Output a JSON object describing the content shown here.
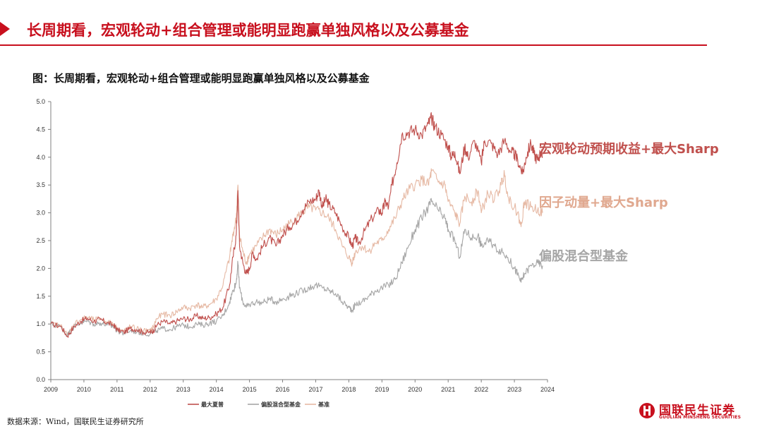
{
  "header": {
    "title": "长周期看，宏观轮动+组合管理或能明显跑赢单独风格以及公募基金"
  },
  "figure": {
    "caption": "图：长周期看，宏观轮动+组合管理或能明显跑赢单独风格以及公募基金"
  },
  "source": "数据来源：Wind，国联民生证券研究所",
  "logo": {
    "name": "国联民生证券",
    "english": "GUOLIAN MINSHENG SECURITIES"
  },
  "chart_data": {
    "type": "line",
    "x_ticks": [
      "2009",
      "2010",
      "2011",
      "2012",
      "2013",
      "2014",
      "2015",
      "2016",
      "2017",
      "2018",
      "2019",
      "2020",
      "2021",
      "2022",
      "2023",
      "2024"
    ],
    "y_ticks": [
      "0.0",
      "0.5",
      "1.0",
      "1.5",
      "2.0",
      "2.5",
      "3.0",
      "3.5",
      "4.0",
      "4.5",
      "5.0"
    ],
    "xlim": [
      2009,
      2024
    ],
    "ylim": [
      0,
      5
    ],
    "grid": false,
    "legend_position": "bottom",
    "series": [
      {
        "name": "最大夏普",
        "label": "宏观轮动预期收益+最大Sharp",
        "color": "#c0504d",
        "points": [
          [
            2009.0,
            1.0
          ],
          [
            2009.3,
            0.96
          ],
          [
            2009.5,
            0.78
          ],
          [
            2009.7,
            0.95
          ],
          [
            2009.9,
            1.05
          ],
          [
            2010.1,
            1.1
          ],
          [
            2010.3,
            1.05
          ],
          [
            2010.5,
            1.08
          ],
          [
            2010.7,
            1.02
          ],
          [
            2010.9,
            0.98
          ],
          [
            2011.0,
            0.9
          ],
          [
            2011.2,
            0.85
          ],
          [
            2011.4,
            0.92
          ],
          [
            2011.6,
            0.9
          ],
          [
            2011.8,
            0.85
          ],
          [
            2012.0,
            0.85
          ],
          [
            2012.1,
            0.88
          ],
          [
            2012.2,
            0.98
          ],
          [
            2012.4,
            1.05
          ],
          [
            2012.6,
            1.0
          ],
          [
            2012.8,
            1.05
          ],
          [
            2013.0,
            1.1
          ],
          [
            2013.2,
            1.08
          ],
          [
            2013.4,
            1.15
          ],
          [
            2013.6,
            1.1
          ],
          [
            2013.8,
            1.12
          ],
          [
            2014.0,
            1.18
          ],
          [
            2014.2,
            1.3
          ],
          [
            2014.4,
            1.7
          ],
          [
            2014.5,
            2.2
          ],
          [
            2014.6,
            2.6
          ],
          [
            2014.65,
            3.4
          ],
          [
            2014.7,
            2.4
          ],
          [
            2014.8,
            2.1
          ],
          [
            2014.9,
            1.9
          ],
          [
            2015.0,
            2.0
          ],
          [
            2015.1,
            2.3
          ],
          [
            2015.2,
            2.15
          ],
          [
            2015.4,
            2.4
          ],
          [
            2015.6,
            2.55
          ],
          [
            2015.8,
            2.4
          ],
          [
            2016.0,
            2.6
          ],
          [
            2016.2,
            2.75
          ],
          [
            2016.4,
            2.85
          ],
          [
            2016.6,
            3.05
          ],
          [
            2016.8,
            3.2
          ],
          [
            2017.0,
            3.25
          ],
          [
            2017.1,
            3.4
          ],
          [
            2017.2,
            3.1
          ],
          [
            2017.3,
            3.25
          ],
          [
            2017.4,
            3.15
          ],
          [
            2017.6,
            3.0
          ],
          [
            2017.8,
            2.75
          ],
          [
            2018.0,
            2.55
          ],
          [
            2018.1,
            2.4
          ],
          [
            2018.2,
            2.55
          ],
          [
            2018.3,
            2.45
          ],
          [
            2018.5,
            2.7
          ],
          [
            2018.7,
            2.9
          ],
          [
            2018.9,
            3.05
          ],
          [
            2019.0,
            3.0
          ],
          [
            2019.1,
            3.2
          ],
          [
            2019.2,
            3.1
          ],
          [
            2019.3,
            3.5
          ],
          [
            2019.45,
            3.9
          ],
          [
            2019.6,
            4.4
          ],
          [
            2019.8,
            4.45
          ],
          [
            2020.0,
            4.5
          ],
          [
            2020.2,
            4.4
          ],
          [
            2020.4,
            4.6
          ],
          [
            2020.5,
            4.7
          ],
          [
            2020.6,
            4.55
          ],
          [
            2020.8,
            4.4
          ],
          [
            2021.0,
            4.2
          ],
          [
            2021.1,
            4.0
          ],
          [
            2021.2,
            4.1
          ],
          [
            2021.35,
            3.7
          ],
          [
            2021.5,
            4.2
          ],
          [
            2021.6,
            4.0
          ],
          [
            2021.8,
            4.3
          ],
          [
            2022.0,
            3.9
          ],
          [
            2022.1,
            4.3
          ],
          [
            2022.3,
            4.25
          ],
          [
            2022.5,
            4.05
          ],
          [
            2022.7,
            4.3
          ],
          [
            2022.9,
            4.1
          ],
          [
            2023.0,
            4.05
          ],
          [
            2023.1,
            3.95
          ],
          [
            2023.25,
            3.7
          ],
          [
            2023.35,
            4.0
          ],
          [
            2023.5,
            4.25
          ],
          [
            2023.6,
            4.05
          ],
          [
            2023.7,
            3.95
          ],
          [
            2023.8,
            4.1
          ],
          [
            2023.85,
            4.0
          ]
        ]
      },
      {
        "name": "偏股混合型基金",
        "label": "偏股混合型基金",
        "color": "#a6a6a6",
        "points": [
          [
            2009.0,
            1.0
          ],
          [
            2009.3,
            0.95
          ],
          [
            2009.5,
            0.8
          ],
          [
            2009.7,
            0.95
          ],
          [
            2009.9,
            1.02
          ],
          [
            2010.1,
            1.05
          ],
          [
            2010.3,
            1.0
          ],
          [
            2010.5,
            1.02
          ],
          [
            2010.7,
            0.98
          ],
          [
            2010.9,
            0.95
          ],
          [
            2011.0,
            0.88
          ],
          [
            2011.2,
            0.83
          ],
          [
            2011.4,
            0.88
          ],
          [
            2011.6,
            0.86
          ],
          [
            2011.8,
            0.83
          ],
          [
            2012.0,
            0.82
          ],
          [
            2012.2,
            0.88
          ],
          [
            2012.4,
            0.92
          ],
          [
            2012.6,
            0.9
          ],
          [
            2012.8,
            0.95
          ],
          [
            2013.0,
            0.98
          ],
          [
            2013.2,
            0.95
          ],
          [
            2013.4,
            1.0
          ],
          [
            2013.6,
            0.98
          ],
          [
            2013.8,
            1.02
          ],
          [
            2014.0,
            1.05
          ],
          [
            2014.2,
            1.15
          ],
          [
            2014.4,
            1.4
          ],
          [
            2014.5,
            1.6
          ],
          [
            2014.6,
            1.75
          ],
          [
            2014.65,
            2.1
          ],
          [
            2014.7,
            1.65
          ],
          [
            2014.8,
            1.4
          ],
          [
            2014.9,
            1.3
          ],
          [
            2015.0,
            1.35
          ],
          [
            2015.2,
            1.4
          ],
          [
            2015.4,
            1.38
          ],
          [
            2015.6,
            1.45
          ],
          [
            2015.8,
            1.4
          ],
          [
            2016.0,
            1.45
          ],
          [
            2016.2,
            1.5
          ],
          [
            2016.4,
            1.55
          ],
          [
            2016.6,
            1.6
          ],
          [
            2016.8,
            1.65
          ],
          [
            2017.0,
            1.7
          ],
          [
            2017.2,
            1.65
          ],
          [
            2017.4,
            1.6
          ],
          [
            2017.6,
            1.55
          ],
          [
            2017.8,
            1.4
          ],
          [
            2018.0,
            1.3
          ],
          [
            2018.1,
            1.25
          ],
          [
            2018.2,
            1.35
          ],
          [
            2018.4,
            1.4
          ],
          [
            2018.6,
            1.5
          ],
          [
            2018.8,
            1.6
          ],
          [
            2019.0,
            1.65
          ],
          [
            2019.2,
            1.7
          ],
          [
            2019.4,
            1.8
          ],
          [
            2019.6,
            2.1
          ],
          [
            2019.8,
            2.4
          ],
          [
            2020.0,
            2.7
          ],
          [
            2020.2,
            2.9
          ],
          [
            2020.4,
            3.1
          ],
          [
            2020.5,
            3.2
          ],
          [
            2020.7,
            3.05
          ],
          [
            2020.9,
            2.9
          ],
          [
            2021.0,
            2.7
          ],
          [
            2021.2,
            2.5
          ],
          [
            2021.35,
            2.2
          ],
          [
            2021.5,
            2.7
          ],
          [
            2021.7,
            2.55
          ],
          [
            2021.9,
            2.6
          ],
          [
            2022.0,
            2.4
          ],
          [
            2022.2,
            2.5
          ],
          [
            2022.4,
            2.4
          ],
          [
            2022.6,
            2.3
          ],
          [
            2022.8,
            2.2
          ],
          [
            2023.0,
            2.0
          ],
          [
            2023.1,
            1.9
          ],
          [
            2023.2,
            1.75
          ],
          [
            2023.3,
            1.9
          ],
          [
            2023.5,
            2.05
          ],
          [
            2023.7,
            2.1
          ],
          [
            2023.85,
            2.05
          ]
        ]
      },
      {
        "name": "基准",
        "label": "因子动量+最大Sharp",
        "color": "#e6b9a4",
        "points": [
          [
            2009.0,
            1.0
          ],
          [
            2009.3,
            0.97
          ],
          [
            2009.5,
            0.8
          ],
          [
            2009.7,
            1.0
          ],
          [
            2009.9,
            1.08
          ],
          [
            2010.1,
            1.12
          ],
          [
            2010.3,
            1.07
          ],
          [
            2010.5,
            1.1
          ],
          [
            2010.7,
            1.04
          ],
          [
            2010.9,
            1.0
          ],
          [
            2011.0,
            0.92
          ],
          [
            2011.2,
            0.87
          ],
          [
            2011.4,
            0.95
          ],
          [
            2011.6,
            0.92
          ],
          [
            2011.8,
            0.88
          ],
          [
            2012.0,
            0.87
          ],
          [
            2012.1,
            0.95
          ],
          [
            2012.2,
            1.1
          ],
          [
            2012.4,
            1.18
          ],
          [
            2012.6,
            1.15
          ],
          [
            2012.8,
            1.22
          ],
          [
            2013.0,
            1.3
          ],
          [
            2013.2,
            1.28
          ],
          [
            2013.4,
            1.35
          ],
          [
            2013.6,
            1.3
          ],
          [
            2013.8,
            1.35
          ],
          [
            2014.0,
            1.45
          ],
          [
            2014.2,
            1.7
          ],
          [
            2014.4,
            2.2
          ],
          [
            2014.5,
            2.6
          ],
          [
            2014.6,
            2.9
          ],
          [
            2014.65,
            3.5
          ],
          [
            2014.7,
            2.6
          ],
          [
            2014.8,
            2.3
          ],
          [
            2014.9,
            2.1
          ],
          [
            2015.0,
            2.25
          ],
          [
            2015.2,
            2.4
          ],
          [
            2015.4,
            2.55
          ],
          [
            2015.6,
            2.7
          ],
          [
            2015.8,
            2.6
          ],
          [
            2016.0,
            2.7
          ],
          [
            2016.2,
            2.8
          ],
          [
            2016.4,
            2.9
          ],
          [
            2016.6,
            3.0
          ],
          [
            2016.8,
            3.1
          ],
          [
            2017.0,
            3.05
          ],
          [
            2017.2,
            3.0
          ],
          [
            2017.4,
            2.9
          ],
          [
            2017.6,
            2.7
          ],
          [
            2017.8,
            2.4
          ],
          [
            2018.0,
            2.2
          ],
          [
            2018.1,
            2.1
          ],
          [
            2018.2,
            2.3
          ],
          [
            2018.4,
            2.4
          ],
          [
            2018.6,
            2.3
          ],
          [
            2018.8,
            2.45
          ],
          [
            2019.0,
            2.5
          ],
          [
            2019.2,
            2.7
          ],
          [
            2019.4,
            2.9
          ],
          [
            2019.6,
            3.2
          ],
          [
            2019.8,
            3.4
          ],
          [
            2020.0,
            3.5
          ],
          [
            2020.2,
            3.6
          ],
          [
            2020.4,
            3.5
          ],
          [
            2020.5,
            3.75
          ],
          [
            2020.7,
            3.55
          ],
          [
            2020.9,
            3.5
          ],
          [
            2021.0,
            3.2
          ],
          [
            2021.2,
            3.0
          ],
          [
            2021.35,
            2.8
          ],
          [
            2021.5,
            3.3
          ],
          [
            2021.7,
            3.2
          ],
          [
            2021.9,
            3.4
          ],
          [
            2022.0,
            3.0
          ],
          [
            2022.2,
            3.35
          ],
          [
            2022.4,
            3.25
          ],
          [
            2022.6,
            3.5
          ],
          [
            2022.7,
            3.7
          ],
          [
            2022.8,
            3.3
          ],
          [
            2023.0,
            3.1
          ],
          [
            2023.1,
            3.0
          ],
          [
            2023.2,
            2.75
          ],
          [
            2023.3,
            3.2
          ],
          [
            2023.5,
            3.1
          ],
          [
            2023.7,
            3.05
          ],
          [
            2023.85,
            3.0
          ]
        ]
      }
    ]
  }
}
